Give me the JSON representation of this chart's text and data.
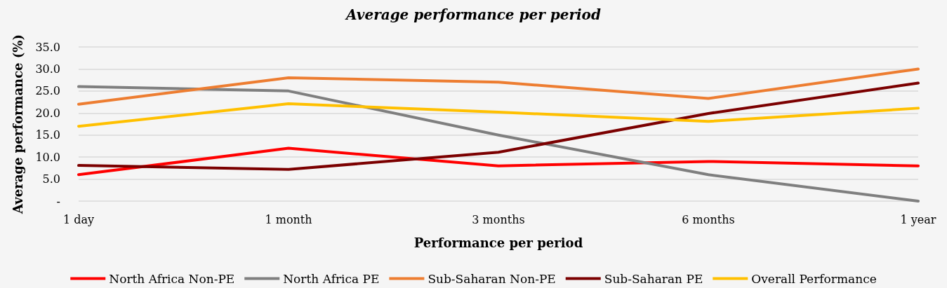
{
  "chart_data": {
    "type": "line",
    "title": "Average performance per period",
    "xlabel": "Performance per period",
    "ylabel": "Average performance (%)",
    "categories": [
      "1 day",
      "1 month",
      "3 months",
      "6 months",
      "1 year"
    ],
    "series": [
      {
        "name": "North Africa Non-PE",
        "color": "#ff0000",
        "values": [
          6.0,
          12.0,
          8.0,
          9.0,
          8.0
        ]
      },
      {
        "name": "North Africa PE",
        "color": "#7f7f7f",
        "values": [
          26.0,
          25.0,
          15.0,
          6.0,
          0.0
        ]
      },
      {
        "name": "Sub-Saharan Non-PE",
        "color": "#ed7d31",
        "values": [
          22.0,
          28.0,
          27.0,
          23.3,
          30.0
        ]
      },
      {
        "name": "Sub-Saharan PE",
        "color": "#7b0000",
        "values": [
          8.1,
          7.2,
          11.1,
          19.9,
          26.8
        ]
      },
      {
        "name": "Overall Performance",
        "color": "#ffc000",
        "values": [
          17.0,
          22.1,
          20.2,
          18.1,
          21.1
        ]
      }
    ],
    "ylim": [
      0,
      35
    ],
    "yticks": [
      {
        "value": 0,
        "label": "-"
      },
      {
        "value": 5,
        "label": "5.0"
      },
      {
        "value": 10,
        "label": "10.0"
      },
      {
        "value": 15,
        "label": "15.0"
      },
      {
        "value": 20,
        "label": "20.0"
      },
      {
        "value": 25,
        "label": "25.0"
      },
      {
        "value": 30,
        "label": "30.0"
      },
      {
        "value": 35,
        "label": "35.0"
      }
    ],
    "grid": "y",
    "legend": "bottom",
    "marker": "none",
    "line_style": "solid"
  }
}
